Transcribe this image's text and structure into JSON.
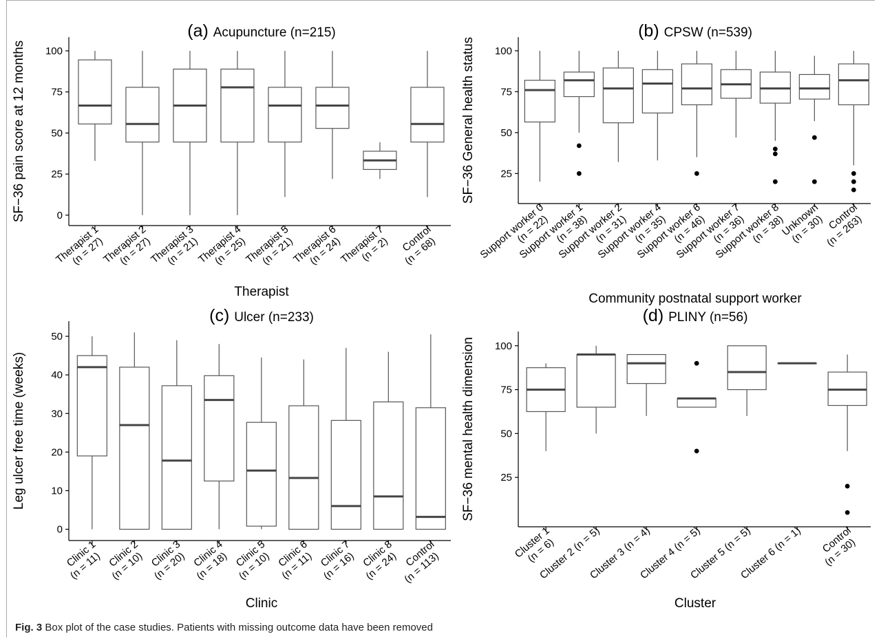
{
  "caption": {
    "label": "Fig. 3",
    "text": "Box plot of the case studies. Patients with missing outcome data have been removed"
  },
  "colors": {
    "box_stroke": "#555555",
    "median": "#444444",
    "axis": "#000000",
    "frame": "#a8a8a8"
  },
  "chart_data": [
    {
      "id": "a",
      "type": "box",
      "title_prefix": "(a)",
      "title": "Acupuncture (n=215)",
      "xlabel": "Therapist",
      "ylabel": "SF−36 pain score at 12 months",
      "ylim": [
        -3,
        105
      ],
      "yticks": [
        0,
        25,
        50,
        75,
        100
      ],
      "categories": [
        "Therapist 1\n(n = 27)",
        "Therapist 2\n(n = 27)",
        "Therapist 3\n(n = 21)",
        "Therapist 4\n(n = 25)",
        "Therapist 5\n(n = 21)",
        "Therapist 6\n(n = 24)",
        "Therapist 7\n(n = 2)",
        "Control\n(n = 68)"
      ],
      "boxes": [
        {
          "min": 33,
          "q1": 55.5,
          "median": 66.7,
          "q3": 94.5,
          "max": 100,
          "outliers": []
        },
        {
          "min": 0,
          "q1": 44.5,
          "median": 55.5,
          "q3": 77.8,
          "max": 100,
          "outliers": []
        },
        {
          "min": 0,
          "q1": 44.5,
          "median": 66.7,
          "q3": 88.9,
          "max": 100,
          "outliers": []
        },
        {
          "min": 0,
          "q1": 44.5,
          "median": 77.8,
          "q3": 88.9,
          "max": 100,
          "outliers": []
        },
        {
          "min": 11,
          "q1": 44.5,
          "median": 66.7,
          "q3": 77.8,
          "max": 100,
          "outliers": []
        },
        {
          "min": 22,
          "q1": 52.8,
          "median": 66.7,
          "q3": 77.8,
          "max": 100,
          "outliers": []
        },
        {
          "min": 22,
          "q1": 27.8,
          "median": 33.3,
          "q3": 38.9,
          "max": 44.4,
          "outliers": []
        },
        {
          "min": 11,
          "q1": 44.5,
          "median": 55.5,
          "q3": 77.8,
          "max": 100,
          "outliers": []
        }
      ]
    },
    {
      "id": "b",
      "type": "box",
      "title_prefix": "(b)",
      "title": "CPSW (n=539)",
      "xlabel": "Community postnatal support worker",
      "ylabel": "SF−36 General health status",
      "ylim": [
        10,
        105
      ],
      "yticks": [
        25,
        50,
        75,
        100
      ],
      "categories": [
        "Support worker 0\n(n = 22)",
        "Support worker 1\n(n = 38)",
        "Support worker 2\n(n = 31)",
        "Support worker 4\n(n = 35)",
        "Support worker 6\n(n = 46)",
        "Support worker 7\n(n = 36)",
        "Support worker 8\n(n = 38)",
        "Unknown\n(n = 30)",
        "Control\n(n = 263)"
      ],
      "boxes": [
        {
          "min": 20,
          "q1": 56.5,
          "median": 76,
          "q3": 82,
          "max": 100,
          "outliers": []
        },
        {
          "min": 50,
          "q1": 72,
          "median": 82,
          "q3": 87,
          "max": 100,
          "outliers": [
            42,
            25
          ]
        },
        {
          "min": 32,
          "q1": 56,
          "median": 77,
          "q3": 89.5,
          "max": 100,
          "outliers": []
        },
        {
          "min": 33,
          "q1": 62,
          "median": 80,
          "q3": 88.5,
          "max": 100,
          "outliers": []
        },
        {
          "min": 35,
          "q1": 67,
          "median": 77,
          "q3": 92,
          "max": 100,
          "outliers": [
            25
          ]
        },
        {
          "min": 47,
          "q1": 71,
          "median": 79.5,
          "q3": 88.5,
          "max": 100,
          "outliers": []
        },
        {
          "min": 45,
          "q1": 68,
          "median": 77,
          "q3": 87,
          "max": 100,
          "outliers": [
            40,
            37,
            20
          ]
        },
        {
          "min": 57,
          "q1": 70.5,
          "median": 77,
          "q3": 85.5,
          "max": 97,
          "outliers": [
            47,
            20
          ]
        },
        {
          "min": 30,
          "q1": 67,
          "median": 82,
          "q3": 92,
          "max": 100,
          "outliers": [
            25,
            20,
            15
          ]
        }
      ]
    },
    {
      "id": "c",
      "type": "box",
      "title_prefix": "(c)",
      "title": "Ulcer (n=233)",
      "xlabel": "Clinic",
      "ylabel": "Leg ulcer free time (weeks)",
      "ylim": [
        -1.5,
        52.5
      ],
      "yticks": [
        0,
        10,
        20,
        30,
        40,
        50
      ],
      "categories": [
        "Clinic 1\n(n = 11)",
        "Clinic 2\n(n = 10)",
        "Clinic 3\n(n = 20)",
        "Clinic 4\n(n = 18)",
        "Clinic 5\n(n = 10)",
        "Clinic 6\n(n = 11)",
        "Clinic 7\n(n = 16)",
        "Clinic 8\n(n = 24)",
        "Control\n(n = 113)"
      ],
      "boxes": [
        {
          "min": 0,
          "q1": 19,
          "median": 42,
          "q3": 45,
          "max": 50,
          "outliers": []
        },
        {
          "min": 0,
          "q1": 0,
          "median": 27,
          "q3": 42,
          "max": 51,
          "outliers": []
        },
        {
          "min": 0,
          "q1": 0,
          "median": 17.8,
          "q3": 37.2,
          "max": 49,
          "outliers": []
        },
        {
          "min": 0,
          "q1": 12.5,
          "median": 33.5,
          "q3": 39.8,
          "max": 48,
          "outliers": []
        },
        {
          "min": 0,
          "q1": 0.8,
          "median": 15.2,
          "q3": 27.7,
          "max": 44.5,
          "outliers": []
        },
        {
          "min": 0,
          "q1": 0,
          "median": 13.3,
          "q3": 32,
          "max": 44,
          "outliers": []
        },
        {
          "min": 0,
          "q1": 0,
          "median": 6,
          "q3": 28.2,
          "max": 47,
          "outliers": []
        },
        {
          "min": 0,
          "q1": 0,
          "median": 8.5,
          "q3": 33,
          "max": 46,
          "outliers": []
        },
        {
          "min": 0,
          "q1": 0,
          "median": 3.2,
          "q3": 31.5,
          "max": 50.5,
          "outliers": []
        }
      ]
    },
    {
      "id": "d",
      "type": "box",
      "title_prefix": "(d)",
      "title": "PLINY (n=56)",
      "xlabel": "Cluster",
      "ylabel": "SF−36 mental health dimension",
      "ylim": [
        0,
        105
      ],
      "yticks": [
        25,
        50,
        75,
        100
      ],
      "categories": [
        "Cluster 1\n(n = 6)",
        "Cluster 2 (n = 5)",
        "Cluster 3 (n = 4)",
        "Cluster 4 (n = 5)",
        "Cluster 5 (n = 5)",
        "Cluster 6 (n = 1)",
        "Control\n(n = 30)"
      ],
      "boxes": [
        {
          "min": 40,
          "q1": 62.5,
          "median": 75,
          "q3": 87.5,
          "max": 90,
          "outliers": []
        },
        {
          "min": 50,
          "q1": 65,
          "median": 95,
          "q3": 95,
          "max": 100,
          "outliers": []
        },
        {
          "min": 60,
          "q1": 78.5,
          "median": 90,
          "q3": 95,
          "max": 95,
          "outliers": []
        },
        {
          "min": 65,
          "q1": 65,
          "median": 70,
          "q3": 70,
          "max": 70,
          "outliers": [
            90,
            40
          ]
        },
        {
          "min": 60,
          "q1": 75,
          "median": 85,
          "q3": 100,
          "max": 100,
          "outliers": []
        },
        {
          "min": 90,
          "q1": 90,
          "median": 90,
          "q3": 90,
          "max": 90,
          "outliers": []
        },
        {
          "min": 40,
          "q1": 66,
          "median": 75,
          "q3": 85,
          "max": 95,
          "outliers": [
            20,
            5
          ]
        }
      ]
    }
  ]
}
